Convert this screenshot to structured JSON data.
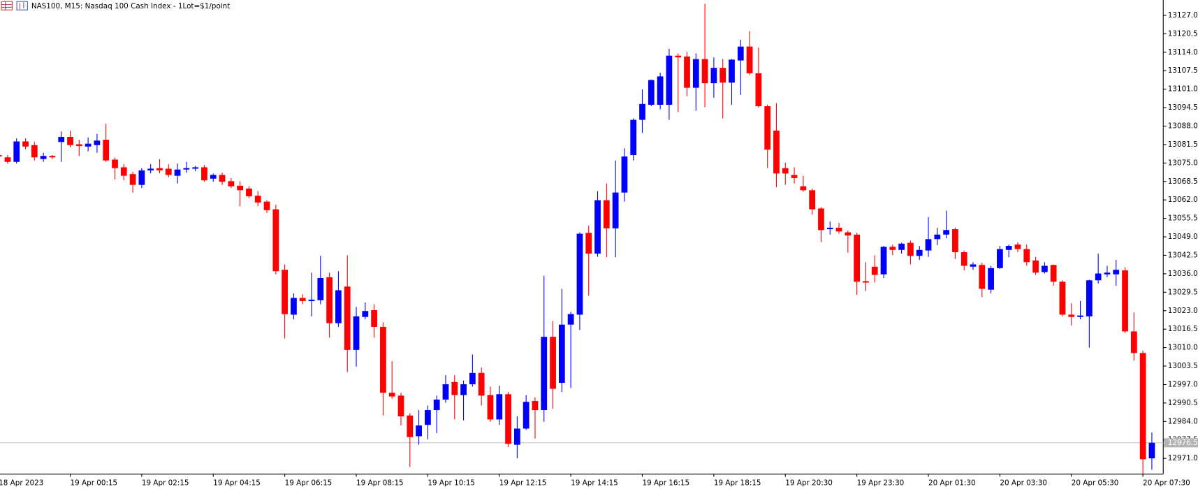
{
  "chart_data": {
    "type": "candlestick",
    "title": "NAS100, M15:  Nasdaq 100 Cash Index - 1Lot=$1/point",
    "up_color": "#0000ff",
    "down_color": "#ff0000",
    "ylim": [
      12965.6,
      13132.4
    ],
    "yticks": [
      {
        "value": 13127,
        "label": "13127.0"
      },
      13120.5,
      {
        "value": 13114,
        "label": "13114.0"
      },
      13107.5,
      {
        "value": 13101,
        "label": "13101.0"
      },
      13094.5,
      {
        "value": 13088,
        "label": "13088.0"
      },
      13081.5,
      {
        "value": 13075,
        "label": "13075.0"
      },
      13068.5,
      {
        "value": 13062,
        "label": "13062.0"
      },
      13055.5,
      {
        "value": 13049,
        "label": "13049.0"
      },
      13042.5,
      {
        "value": 13036,
        "label": "13036.0"
      },
      13029.5,
      {
        "value": 13023,
        "label": "13023.0"
      },
      13016.5,
      {
        "value": 13010,
        "label": "13010.0"
      },
      13003.5,
      {
        "value": 12997,
        "label": "12997.0"
      },
      12990.5,
      {
        "value": 12984,
        "label": "12984.0"
      },
      12977.5,
      {
        "value": 12971,
        "label": "12971.0"
      }
    ],
    "current_price": 12976.5,
    "grid": false,
    "categories": [
      "18 Apr 2023",
      null,
      null,
      null,
      null,
      null,
      null,
      null,
      "19 Apr 00:15",
      null,
      null,
      null,
      null,
      null,
      null,
      null,
      "19 Apr 02:15",
      null,
      null,
      null,
      null,
      null,
      null,
      null,
      "19 Apr 04:15",
      null,
      null,
      null,
      null,
      null,
      null,
      null,
      "19 Apr 06:15",
      null,
      null,
      null,
      null,
      null,
      null,
      null,
      "19 Apr 08:15",
      null,
      null,
      null,
      null,
      null,
      null,
      null,
      "19 Apr 10:15",
      null,
      null,
      null,
      null,
      null,
      null,
      null,
      "19 Apr 12:15",
      null,
      null,
      null,
      null,
      null,
      null,
      null,
      "19 Apr 14:15",
      null,
      null,
      null,
      null,
      null,
      null,
      null,
      "19 Apr 16:15",
      null,
      null,
      null,
      null,
      null,
      null,
      null,
      "19 Apr 18:15",
      null,
      null,
      null,
      null,
      null,
      null,
      null,
      "19 Apr 20:30",
      null,
      null,
      null,
      null,
      null,
      null,
      null,
      "19 Apr 23:30",
      null,
      null,
      null,
      null,
      null,
      null,
      null,
      "20 Apr 01:30",
      null,
      null,
      null,
      null,
      null,
      null,
      null,
      "20 Apr 03:30",
      null,
      null,
      null,
      null,
      null,
      null,
      null,
      "20 Apr 05:30",
      null,
      null,
      null,
      null,
      null,
      null,
      null,
      "20 Apr 07:30",
      null
    ],
    "ohlc": [
      [
        13077.8,
        13078.3,
        13076.7,
        13077.3
      ],
      [
        13077.0,
        13077.8,
        13074.8,
        13075.4
      ],
      [
        13075.4,
        13083.7,
        13074.8,
        13082.6
      ],
      [
        13082.6,
        13083.7,
        13079.9,
        13080.8
      ],
      [
        13081.3,
        13082.4,
        13075.9,
        13077.0
      ],
      [
        13076.4,
        13078.6,
        13075.4,
        13077.5
      ],
      [
        13077.5,
        13077.8,
        13076.4,
        13077.0
      ],
      [
        13082.4,
        13086.1,
        13075.4,
        13084.2
      ],
      [
        13084.2,
        13086.4,
        13080.5,
        13081.3
      ],
      [
        13081.6,
        13083.2,
        13077.5,
        13081.0
      ],
      [
        13080.8,
        13084.0,
        13079.1,
        13081.8
      ],
      [
        13081.3,
        13085.3,
        13078.6,
        13082.9
      ],
      [
        13083.2,
        13088.8,
        13075.4,
        13075.9
      ],
      [
        13076.2,
        13077.0,
        13069.2,
        13073.2
      ],
      [
        13073.5,
        13074.6,
        13068.9,
        13070.5
      ],
      [
        13071.1,
        13071.9,
        13064.6,
        13067.3
      ],
      [
        13067.3,
        13073.2,
        13066.2,
        13072.4
      ],
      [
        13072.4,
        13074.6,
        13071.3,
        13073.0
      ],
      [
        13073.2,
        13076.4,
        13071.3,
        13072.4
      ],
      [
        13073.0,
        13074.6,
        13070.0,
        13070.8
      ],
      [
        13070.5,
        13074.8,
        13067.8,
        13072.7
      ],
      [
        13072.7,
        13075.4,
        13071.6,
        13073.2
      ],
      [
        13073.0,
        13074.0,
        13072.1,
        13073.5
      ],
      [
        13073.5,
        13074.3,
        13068.4,
        13068.9
      ],
      [
        13069.5,
        13071.3,
        13068.4,
        13070.8
      ],
      [
        13070.8,
        13071.6,
        13067.3,
        13068.4
      ],
      [
        13068.6,
        13069.7,
        13066.2,
        13066.8
      ],
      [
        13067.0,
        13068.6,
        13059.8,
        13065.4
      ],
      [
        13066.0,
        13066.8,
        13062.7,
        13063.3
      ],
      [
        13063.5,
        13065.1,
        13059.8,
        13061.1
      ],
      [
        13061.4,
        13061.9,
        13057.4,
        13058.4
      ],
      [
        13058.7,
        13060.3,
        13035.8,
        13036.9
      ],
      [
        13037.4,
        13039.3,
        13013.2,
        13021.8
      ],
      [
        13021.6,
        13029.1,
        13020.0,
        13027.5
      ],
      [
        13027.5,
        13028.8,
        13025.3,
        13026.4
      ],
      [
        13026.4,
        13036.4,
        13021.0,
        13026.9
      ],
      [
        13026.7,
        13042.3,
        13025.3,
        13034.5
      ],
      [
        13034.8,
        13036.4,
        13013.5,
        13018.6
      ],
      [
        13018.6,
        13036.9,
        13017.3,
        13030.2
      ],
      [
        13031.5,
        13042.5,
        13001.4,
        13009.2
      ],
      [
        13009.2,
        13024.3,
        13003.3,
        13021.0
      ],
      [
        13020.8,
        13025.9,
        13020.0,
        13022.9
      ],
      [
        13023.2,
        13025.3,
        13013.5,
        13017.3
      ],
      [
        13017.3,
        13018.9,
        12986.1,
        12994.1
      ],
      [
        12994.1,
        13005.2,
        12992.0,
        12992.8
      ],
      [
        12993.1,
        12994.1,
        12982.6,
        12985.8
      ],
      [
        12986.1,
        12986.9,
        12968.0,
        12978.5
      ],
      [
        12978.8,
        12988.0,
        12975.8,
        12982.6
      ],
      [
        12982.8,
        12989.6,
        12977.7,
        12988.0
      ],
      [
        12988.0,
        12993.1,
        12979.9,
        12991.7
      ],
      [
        12991.7,
        13000.3,
        12990.6,
        12997.1
      ],
      [
        12997.9,
        13000.3,
        12984.7,
        12993.3
      ],
      [
        12993.3,
        12998.4,
        12984.4,
        12997.1
      ],
      [
        12997.1,
        13007.6,
        12996.3,
        13001.1
      ],
      [
        13001.1,
        13003.0,
        12989.6,
        12993.1
      ],
      [
        12993.3,
        12996.3,
        12983.9,
        12984.7
      ],
      [
        12984.7,
        12996.6,
        12982.8,
        12993.6
      ],
      [
        12993.6,
        12994.4,
        12975.0,
        12976.1
      ],
      [
        12975.8,
        12985.8,
        12971.0,
        12981.5
      ],
      [
        12981.5,
        12993.3,
        12981.0,
        12990.9
      ],
      [
        12991.2,
        12992.5,
        12978.0,
        12988.0
      ],
      [
        12988.0,
        13035.3,
        12983.9,
        13013.8
      ],
      [
        13013.8,
        13019.4,
        12988.5,
        12995.5
      ],
      [
        12997.6,
        13030.7,
        12994.4,
        13018.1
      ],
      [
        13018.1,
        13022.6,
        12995.8,
        13021.8
      ],
      [
        13021.6,
        13050.6,
        13016.2,
        13050.1
      ],
      [
        13050.4,
        13053.0,
        13028.3,
        13043.1
      ],
      [
        13043.1,
        13065.1,
        13042.0,
        13061.9
      ],
      [
        13061.9,
        13067.8,
        13041.8,
        13052.0
      ],
      [
        13052.0,
        13075.9,
        13041.8,
        13064.6
      ],
      [
        13064.6,
        13080.2,
        13061.4,
        13077.3
      ],
      [
        13077.8,
        13090.7,
        13075.9,
        13090.2
      ],
      [
        13090.2,
        13100.9,
        13085.6,
        13095.8
      ],
      [
        13095.5,
        13104.4,
        13095.0,
        13104.2
      ],
      [
        13095.5,
        13106.8,
        13093.9,
        13105.5
      ],
      [
        13095.5,
        13115.2,
        13090.2,
        13112.8
      ],
      [
        13112.8,
        13113.6,
        13092.9,
        13112.2
      ],
      [
        13112.5,
        13114.1,
        13098.5,
        13101.5
      ],
      [
        13101.5,
        13113.6,
        13093.4,
        13111.6
      ],
      [
        13111.6,
        13131.1,
        13094.7,
        13103.1
      ],
      [
        13103.1,
        13112.2,
        13098.0,
        13108.5
      ],
      [
        13108.5,
        13111.6,
        13090.7,
        13103.3
      ],
      [
        13103.3,
        13111.6,
        13095.5,
        13111.4
      ],
      [
        13111.1,
        13118.4,
        13099.0,
        13116.0
      ],
      [
        13116.0,
        13121.4,
        13106.0,
        13106.6
      ],
      [
        13106.6,
        13115.7,
        13094.5,
        13095.0
      ],
      [
        13095.0,
        13095.5,
        13073.2,
        13079.7
      ],
      [
        13086.4,
        13096.1,
        13066.5,
        13071.3
      ],
      [
        13073.2,
        13075.1,
        13067.3,
        13071.3
      ],
      [
        13070.8,
        13073.5,
        13067.8,
        13069.7
      ],
      [
        13066.8,
        13070.5,
        13064.9,
        13065.4
      ],
      [
        13065.4,
        13066.0,
        13056.8,
        13058.7
      ],
      [
        13059.0,
        13059.5,
        13047.1,
        13051.4
      ],
      [
        13051.7,
        13054.4,
        13049.8,
        13052.2
      ],
      [
        13052.2,
        13053.9,
        13050.1,
        13050.9
      ],
      [
        13050.6,
        13051.2,
        13043.4,
        13049.5
      ],
      [
        13049.8,
        13050.4,
        13028.6,
        13033.2
      ],
      [
        13033.4,
        13040.1,
        13029.9,
        13032.9
      ],
      [
        13038.5,
        13042.5,
        13032.9,
        13035.6
      ],
      [
        13035.8,
        13045.8,
        13034.5,
        13045.5
      ],
      [
        13045.5,
        13046.3,
        13042.5,
        13044.4
      ],
      [
        13044.4,
        13046.9,
        13043.1,
        13046.6
      ],
      [
        13046.9,
        13047.7,
        13039.3,
        13042.3
      ],
      [
        13042.3,
        13045.8,
        13040.9,
        13044.4
      ],
      [
        13044.2,
        13056.0,
        13042.0,
        13048.2
      ],
      [
        13048.2,
        13052.2,
        13046.1,
        13049.8
      ],
      [
        13049.8,
        13058.2,
        13048.5,
        13051.4
      ],
      [
        13051.7,
        13052.2,
        13041.2,
        13043.6
      ],
      [
        13043.6,
        13044.2,
        13037.2,
        13038.8
      ],
      [
        13038.5,
        13040.1,
        13037.4,
        13039.3
      ],
      [
        13039.1,
        13039.9,
        13027.8,
        13030.7
      ],
      [
        13030.4,
        13038.8,
        13029.1,
        13038.0
      ],
      [
        13038.0,
        13045.8,
        13037.7,
        13044.7
      ],
      [
        13044.4,
        13046.3,
        13041.8,
        13045.8
      ],
      [
        13046.3,
        13047.1,
        13043.6,
        13044.7
      ],
      [
        13044.7,
        13046.3,
        13038.8,
        13040.1
      ],
      [
        13040.7,
        13042.0,
        13035.6,
        13036.4
      ],
      [
        13036.6,
        13040.1,
        13036.1,
        13038.8
      ],
      [
        13039.1,
        13039.3,
        13031.8,
        13033.2
      ],
      [
        13033.2,
        13033.7,
        13021.0,
        13021.6
      ],
      [
        13021.6,
        13025.6,
        13017.8,
        13020.8
      ],
      [
        13020.8,
        13026.4,
        13020.0,
        13021.3
      ],
      [
        13021.0,
        13033.9,
        13010.0,
        13033.7
      ],
      [
        13033.7,
        13043.1,
        13032.6,
        13036.1
      ],
      [
        13035.8,
        13038.8,
        13034.8,
        13036.4
      ],
      [
        13035.8,
        13040.9,
        13031.8,
        13037.4
      ],
      [
        13037.2,
        13038.3,
        13015.1,
        13015.7
      ],
      [
        13015.7,
        13022.4,
        13005.4,
        13008.1
      ],
      [
        13008.1,
        13008.9,
        12965.6,
        12970.7
      ],
      [
        12971.0,
        12980.1,
        12967.0,
        12976.5
      ]
    ]
  }
}
